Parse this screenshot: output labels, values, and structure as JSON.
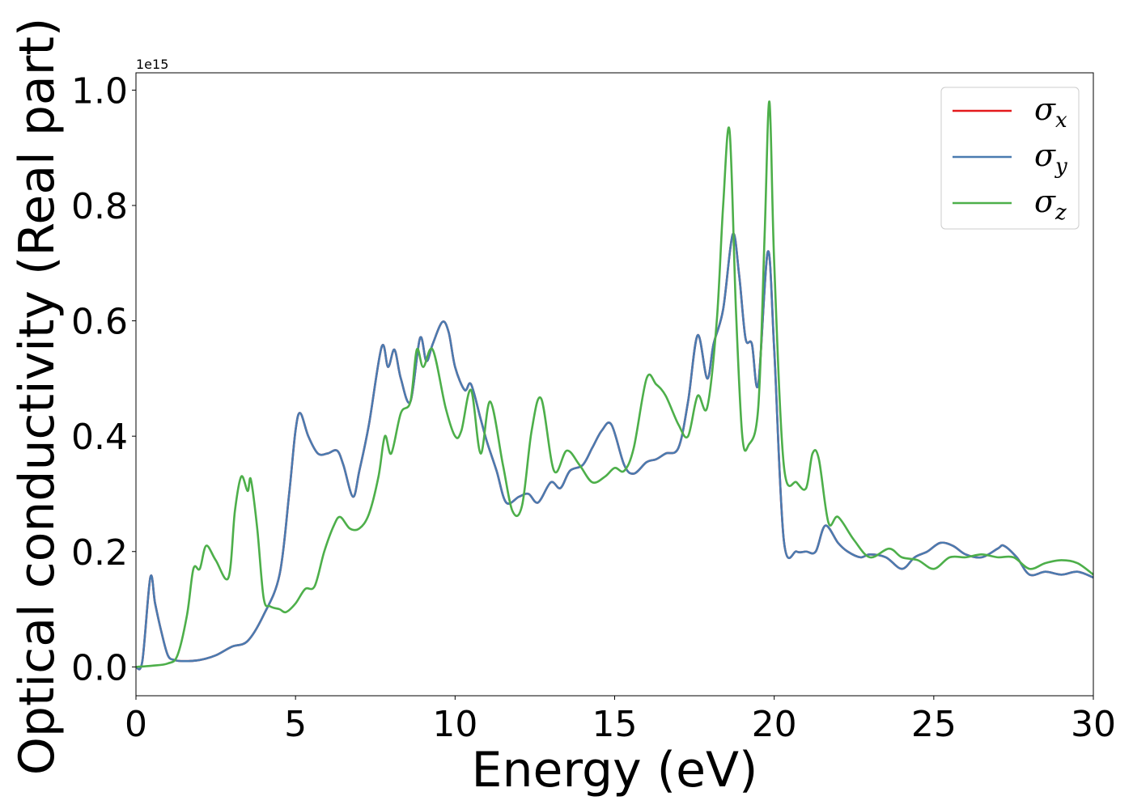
{
  "chart_data": {
    "type": "line",
    "xlabel": "Energy (eV)",
    "ylabel": "Optical conductivity (Real part)",
    "y_offset_label": "1e15",
    "xlim": [
      0,
      30
    ],
    "ylim": [
      -0.05,
      1.03
    ],
    "xticks": [
      0,
      5,
      10,
      15,
      20,
      25,
      30
    ],
    "xtick_labels": [
      "0",
      "5",
      "10",
      "15",
      "20",
      "25",
      "30"
    ],
    "yticks": [
      0.0,
      0.2,
      0.4,
      0.6,
      0.8,
      1.0
    ],
    "ytick_labels": [
      "0.0",
      "0.2",
      "0.4",
      "0.6",
      "0.8",
      "1.0"
    ],
    "grid": false,
    "legend_position": "top-right",
    "series": [
      {
        "name": "x",
        "color": "#e41a1c",
        "x": [
          0,
          0.2,
          0.45,
          0.6,
          0.8,
          1.0,
          1.2,
          1.5,
          2.0,
          2.5,
          3.0,
          3.5,
          4.0,
          4.5,
          4.8,
          5.0,
          5.15,
          5.4,
          5.7,
          6.0,
          6.3,
          6.5,
          6.8,
          7.0,
          7.3,
          7.7,
          7.9,
          8.1,
          8.3,
          8.6,
          8.9,
          9.1,
          9.3,
          9.6,
          9.8,
          10.0,
          10.3,
          10.5,
          10.8,
          11.0,
          11.3,
          11.6,
          12.0,
          12.3,
          12.6,
          13.0,
          13.3,
          13.6,
          14.0,
          14.3,
          14.6,
          14.9,
          15.3,
          15.6,
          16.0,
          16.3,
          16.6,
          17.0,
          17.3,
          17.6,
          17.9,
          18.1,
          18.4,
          18.7,
          18.9,
          19.1,
          19.3,
          19.5,
          19.8,
          20.0,
          20.3,
          20.7,
          21.0,
          21.3,
          21.6,
          22.0,
          22.3,
          22.7,
          23.0,
          23.5,
          24.0,
          24.4,
          24.8,
          25.2,
          25.6,
          26.0,
          26.5,
          27.0,
          27.2,
          27.6,
          28.0,
          28.5,
          29.0,
          29.5,
          30.0
        ],
        "values": [
          0,
          0.01,
          0.155,
          0.11,
          0.06,
          0.02,
          0.012,
          0.01,
          0.012,
          0.02,
          0.035,
          0.045,
          0.09,
          0.16,
          0.3,
          0.41,
          0.44,
          0.4,
          0.37,
          0.37,
          0.375,
          0.35,
          0.295,
          0.34,
          0.42,
          0.555,
          0.52,
          0.55,
          0.5,
          0.46,
          0.57,
          0.53,
          0.56,
          0.598,
          0.58,
          0.52,
          0.48,
          0.49,
          0.43,
          0.39,
          0.34,
          0.285,
          0.295,
          0.3,
          0.285,
          0.32,
          0.31,
          0.34,
          0.35,
          0.38,
          0.41,
          0.42,
          0.35,
          0.335,
          0.355,
          0.36,
          0.37,
          0.38,
          0.46,
          0.575,
          0.5,
          0.56,
          0.62,
          0.75,
          0.68,
          0.57,
          0.56,
          0.49,
          0.72,
          0.55,
          0.22,
          0.2,
          0.2,
          0.2,
          0.245,
          0.215,
          0.2,
          0.19,
          0.195,
          0.19,
          0.17,
          0.19,
          0.2,
          0.215,
          0.21,
          0.195,
          0.19,
          0.205,
          0.21,
          0.19,
          0.16,
          0.165,
          0.16,
          0.165,
          0.155
        ]
      },
      {
        "name": "y",
        "color": "#4a7bb0",
        "x": [
          0,
          0.2,
          0.45,
          0.6,
          0.8,
          1.0,
          1.2,
          1.5,
          2.0,
          2.5,
          3.0,
          3.5,
          4.0,
          4.5,
          4.8,
          5.0,
          5.15,
          5.4,
          5.7,
          6.0,
          6.3,
          6.5,
          6.8,
          7.0,
          7.3,
          7.7,
          7.9,
          8.1,
          8.3,
          8.6,
          8.9,
          9.1,
          9.3,
          9.6,
          9.8,
          10.0,
          10.3,
          10.5,
          10.8,
          11.0,
          11.3,
          11.6,
          12.0,
          12.3,
          12.6,
          13.0,
          13.3,
          13.6,
          14.0,
          14.3,
          14.6,
          14.9,
          15.3,
          15.6,
          16.0,
          16.3,
          16.6,
          17.0,
          17.3,
          17.6,
          17.9,
          18.1,
          18.4,
          18.7,
          18.9,
          19.1,
          19.3,
          19.5,
          19.8,
          20.0,
          20.3,
          20.7,
          21.0,
          21.3,
          21.6,
          22.0,
          22.3,
          22.7,
          23.0,
          23.5,
          24.0,
          24.4,
          24.8,
          25.2,
          25.6,
          26.0,
          26.5,
          27.0,
          27.2,
          27.6,
          28.0,
          28.5,
          29.0,
          29.5,
          30.0
        ],
        "values": [
          0,
          0.01,
          0.155,
          0.11,
          0.06,
          0.02,
          0.012,
          0.01,
          0.012,
          0.02,
          0.035,
          0.045,
          0.09,
          0.16,
          0.3,
          0.41,
          0.44,
          0.4,
          0.37,
          0.37,
          0.375,
          0.35,
          0.295,
          0.34,
          0.42,
          0.555,
          0.52,
          0.55,
          0.5,
          0.46,
          0.57,
          0.53,
          0.56,
          0.598,
          0.58,
          0.52,
          0.48,
          0.49,
          0.43,
          0.39,
          0.34,
          0.285,
          0.295,
          0.3,
          0.285,
          0.32,
          0.31,
          0.34,
          0.35,
          0.38,
          0.41,
          0.42,
          0.35,
          0.335,
          0.355,
          0.36,
          0.37,
          0.38,
          0.46,
          0.575,
          0.5,
          0.56,
          0.62,
          0.75,
          0.68,
          0.57,
          0.56,
          0.49,
          0.72,
          0.55,
          0.22,
          0.2,
          0.2,
          0.2,
          0.245,
          0.215,
          0.2,
          0.19,
          0.195,
          0.19,
          0.17,
          0.19,
          0.2,
          0.215,
          0.21,
          0.195,
          0.19,
          0.205,
          0.21,
          0.19,
          0.16,
          0.165,
          0.16,
          0.165,
          0.155
        ]
      },
      {
        "name": "z",
        "color": "#4daf4a",
        "x": [
          0,
          0.5,
          1.0,
          1.3,
          1.6,
          1.8,
          2.0,
          2.2,
          2.5,
          2.9,
          3.1,
          3.3,
          3.5,
          3.6,
          3.8,
          4.0,
          4.2,
          4.5,
          4.7,
          5.0,
          5.3,
          5.6,
          5.9,
          6.2,
          6.4,
          6.7,
          7.0,
          7.3,
          7.6,
          7.8,
          8.0,
          8.3,
          8.6,
          8.8,
          9.0,
          9.3,
          9.7,
          10.0,
          10.2,
          10.5,
          10.8,
          11.1,
          11.5,
          11.8,
          12.1,
          12.4,
          12.7,
          13.1,
          13.5,
          13.9,
          14.3,
          14.7,
          15.0,
          15.3,
          15.6,
          16.0,
          16.3,
          16.6,
          17.0,
          17.3,
          17.6,
          17.9,
          18.2,
          18.4,
          18.6,
          18.8,
          19.0,
          19.2,
          19.5,
          19.7,
          19.85,
          20.0,
          20.3,
          20.7,
          21.0,
          21.2,
          21.4,
          21.7,
          22.0,
          22.5,
          23.0,
          23.6,
          24.0,
          24.5,
          25.0,
          25.5,
          26.0,
          26.5,
          27.0,
          27.5,
          28.0,
          28.5,
          29.0,
          29.5,
          30.0
        ],
        "values": [
          0,
          0.002,
          0.006,
          0.02,
          0.09,
          0.17,
          0.17,
          0.21,
          0.185,
          0.155,
          0.27,
          0.33,
          0.305,
          0.325,
          0.24,
          0.12,
          0.105,
          0.1,
          0.095,
          0.11,
          0.135,
          0.14,
          0.2,
          0.245,
          0.26,
          0.24,
          0.24,
          0.265,
          0.33,
          0.4,
          0.37,
          0.44,
          0.46,
          0.55,
          0.52,
          0.55,
          0.45,
          0.4,
          0.41,
          0.48,
          0.37,
          0.46,
          0.35,
          0.27,
          0.28,
          0.41,
          0.465,
          0.34,
          0.375,
          0.35,
          0.32,
          0.33,
          0.345,
          0.34,
          0.38,
          0.5,
          0.49,
          0.47,
          0.42,
          0.4,
          0.47,
          0.45,
          0.6,
          0.8,
          0.93,
          0.62,
          0.4,
          0.385,
          0.45,
          0.75,
          0.98,
          0.7,
          0.35,
          0.32,
          0.31,
          0.37,
          0.36,
          0.25,
          0.26,
          0.22,
          0.19,
          0.205,
          0.19,
          0.185,
          0.17,
          0.19,
          0.19,
          0.195,
          0.19,
          0.19,
          0.17,
          0.18,
          0.185,
          0.18,
          0.16
        ]
      }
    ]
  }
}
